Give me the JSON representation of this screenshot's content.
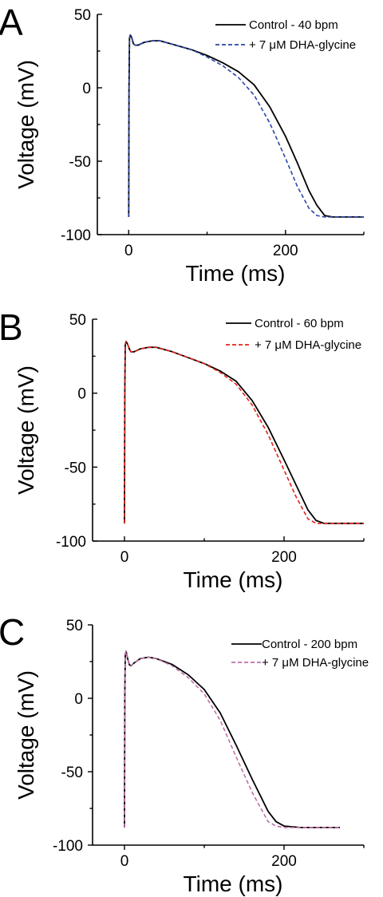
{
  "chart_data": [
    {
      "type": "line",
      "panel": "A",
      "xlabel": "Time (ms)",
      "ylabel": "Voltage (mV)",
      "xlim": [
        -40,
        300
      ],
      "ylim": [
        -100,
        50
      ],
      "xticks": [
        0,
        200
      ],
      "yticks": [
        50,
        0,
        -50,
        -100
      ],
      "legend_position": "top-right",
      "series": [
        {
          "name": "Control - 40 bpm",
          "style": "solid",
          "color": "#000000",
          "x": [
            0,
            0.4,
            1,
            2,
            4,
            6,
            8,
            12,
            20,
            30,
            40,
            60,
            80,
            100,
            120,
            140,
            160,
            180,
            200,
            215,
            230,
            240,
            250,
            260,
            280,
            300
          ],
          "y": [
            -88,
            0,
            34,
            36,
            34,
            30,
            29,
            29,
            31,
            32,
            32,
            29,
            26,
            22,
            17,
            11,
            2,
            -13,
            -33,
            -51,
            -70,
            -80,
            -87,
            -88,
            -88,
            -88
          ]
        },
        {
          "name": "+ 7 μM DHA-glycine",
          "style": "dashed",
          "color": "#2b46a8",
          "x": [
            0,
            0.4,
            1,
            2,
            4,
            6,
            8,
            12,
            20,
            30,
            40,
            60,
            80,
            100,
            120,
            140,
            160,
            180,
            200,
            215,
            230,
            240,
            250,
            260,
            280,
            300
          ],
          "y": [
            -88,
            0,
            34,
            36,
            34,
            30,
            29,
            29,
            31,
            32,
            32,
            29,
            26,
            21,
            15,
            7,
            -5,
            -24,
            -48,
            -67,
            -82,
            -87,
            -88,
            -88,
            -88,
            -88
          ]
        }
      ]
    },
    {
      "type": "line",
      "panel": "B",
      "xlabel": "Time (ms)",
      "ylabel": "Voltage (mV)",
      "xlim": [
        -40,
        300
      ],
      "ylim": [
        -100,
        50
      ],
      "xticks": [
        0,
        200
      ],
      "yticks": [
        50,
        0,
        -50,
        -100
      ],
      "legend_position": "top-right",
      "series": [
        {
          "name": "Control - 60 bpm",
          "style": "solid",
          "color": "#000000",
          "x": [
            0,
            0.4,
            1,
            2,
            4,
            6,
            8,
            12,
            20,
            30,
            40,
            60,
            80,
            100,
            120,
            140,
            160,
            180,
            200,
            215,
            230,
            240,
            250,
            260,
            280,
            300
          ],
          "y": [
            -88,
            0,
            33,
            35,
            33,
            30,
            28,
            28,
            30,
            31,
            31,
            28,
            24,
            20,
            15,
            8,
            -5,
            -23,
            -45,
            -62,
            -79,
            -86,
            -88,
            -88,
            -88,
            -88
          ]
        },
        {
          "name": "+ 7 μM DHA-glycine",
          "style": "dashed",
          "color": "#e2231a",
          "x": [
            0,
            0.4,
            1,
            2,
            4,
            6,
            8,
            12,
            20,
            30,
            40,
            60,
            80,
            100,
            120,
            140,
            160,
            180,
            200,
            215,
            230,
            240,
            250,
            260,
            280,
            300
          ],
          "y": [
            -88,
            0,
            33,
            35,
            33,
            30,
            28,
            28,
            30,
            31,
            31,
            28,
            24,
            20,
            14,
            6,
            -8,
            -28,
            -52,
            -70,
            -85,
            -88,
            -88,
            -88,
            -88,
            -88
          ]
        }
      ]
    },
    {
      "type": "line",
      "panel": "C",
      "xlabel": "Time (ms)",
      "ylabel": "Voltage (mV)",
      "xlim": [
        -40,
        300
      ],
      "ylim": [
        -100,
        50
      ],
      "xticks": [
        0,
        200
      ],
      "yticks": [
        50,
        0,
        -50,
        -100
      ],
      "legend_position": "top-right",
      "series": [
        {
          "name": "Control - 200 bpm",
          "style": "solid",
          "color": "#000000",
          "x": [
            0,
            0.4,
            1,
            2,
            4,
            6,
            8,
            12,
            20,
            30,
            40,
            60,
            80,
            100,
            120,
            140,
            160,
            180,
            190,
            200,
            220,
            240,
            270
          ],
          "y": [
            -88,
            0,
            30,
            32,
            27,
            23,
            22,
            24,
            27,
            28,
            27,
            23,
            16,
            6,
            -10,
            -32,
            -55,
            -77,
            -84,
            -87,
            -88,
            -88,
            -88
          ]
        },
        {
          "name": "+ 7 μM DHA-glycine",
          "style": "dashed",
          "color": "#c170a8",
          "x": [
            0,
            0.4,
            1,
            2,
            4,
            6,
            8,
            12,
            20,
            30,
            40,
            60,
            80,
            100,
            120,
            140,
            160,
            180,
            190,
            200,
            220,
            240,
            270
          ],
          "y": [
            -88,
            0,
            30,
            32,
            27,
            23,
            22,
            24,
            27,
            28,
            27,
            22,
            14,
            3,
            -15,
            -40,
            -64,
            -84,
            -87,
            -88,
            -88,
            -88,
            -88
          ]
        }
      ]
    }
  ]
}
